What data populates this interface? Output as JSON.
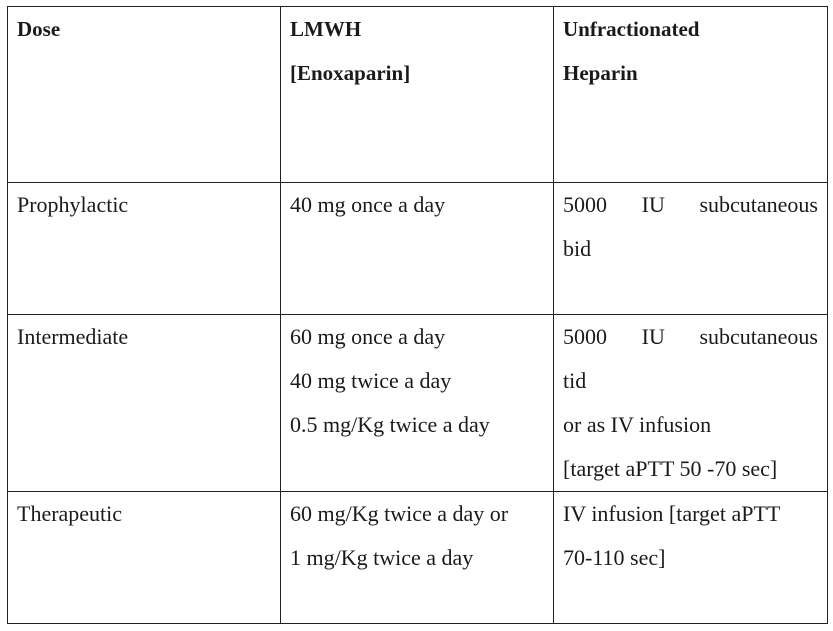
{
  "table": {
    "header": {
      "dose": "Dose",
      "lmwh_line1": "LMWH",
      "lmwh_line2": "[Enoxaparin]",
      "ufh_line1": "Unfractionated",
      "ufh_line2": "Heparin"
    },
    "rows": [
      {
        "dose": "Prophylactic",
        "lmwh": [
          "40 mg once a day"
        ],
        "ufh_justified": "5000 IU subcutaneous",
        "ufh": [
          "bid"
        ]
      },
      {
        "dose": "Intermediate",
        "lmwh": [
          "60 mg once a day",
          "40 mg twice a day",
          "0.5 mg/Kg twice a day"
        ],
        "ufh_justified": "5000 IU subcutaneous",
        "ufh": [
          "tid",
          "or as IV infusion",
          "[target aPTT 50 -70 sec]"
        ]
      },
      {
        "dose": "Therapeutic",
        "lmwh": [
          "60 mg/Kg twice a day or",
          "1 mg/Kg twice a day"
        ],
        "ufh_justified": "",
        "ufh": [
          "IV infusion [target aPTT",
          "70-110 sec]"
        ]
      }
    ]
  }
}
